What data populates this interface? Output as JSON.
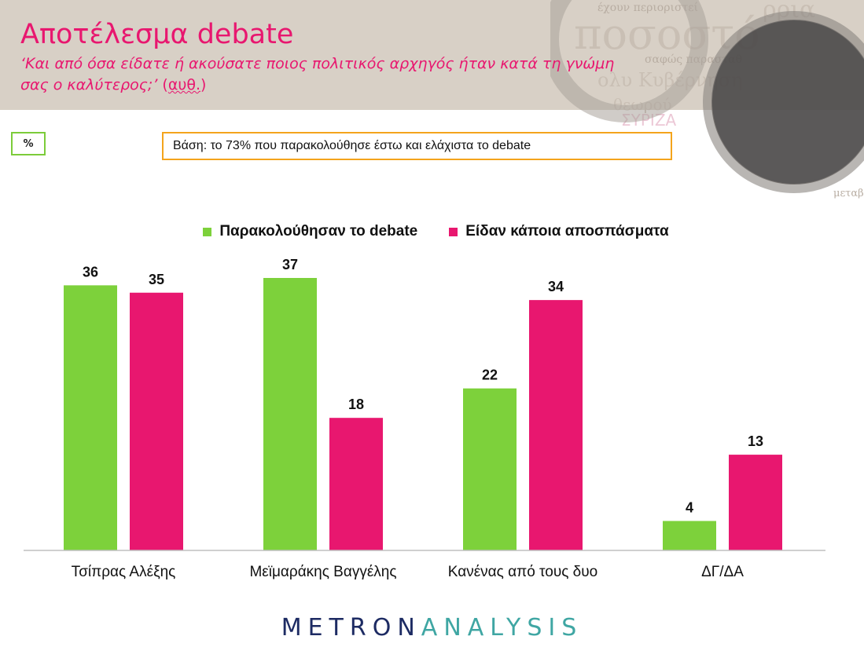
{
  "header": {
    "title": "Αποτέλεσμα debate",
    "subtitle": "‘Και από όσα είδατε ή ακούσατε ποιος πολιτικός αρχηγός ήταν κατά τη γνώμη σας ο καλύτερος;’",
    "subtitle_suffix": "αυθ."
  },
  "unit_label": "%",
  "base_note": "Βάση: το 73% που παρακολούθησε έστω και ελάχιστα το debate",
  "logo": {
    "part1": "METRON",
    "part2": "ANALYSIS"
  },
  "colors": {
    "accent": "#e8176f",
    "green": "#7dd13b",
    "pink": "#e8176f",
    "base_border": "#f4a41c",
    "unit_border": "#7ccc3a"
  },
  "chart_data": {
    "type": "bar",
    "title": "",
    "xlabel": "",
    "ylabel": "%",
    "ylim": [
      0,
      37
    ],
    "legend_position": "top-center",
    "grid": false,
    "categories": [
      "Τσίπρας Αλέξης",
      "Μεϊμαράκης Βαγγέλης",
      "Κανένας από τους δυο",
      "ΔΓ/ΔΑ"
    ],
    "series": [
      {
        "name": "Παρακολούθησαν το debate",
        "color": "#7dd13b",
        "values": [
          36,
          37,
          22,
          4
        ]
      },
      {
        "name": "Είδαν κάποια αποσπάσματα",
        "color": "#e8176f",
        "values": [
          35,
          18,
          34,
          13
        ]
      }
    ]
  }
}
